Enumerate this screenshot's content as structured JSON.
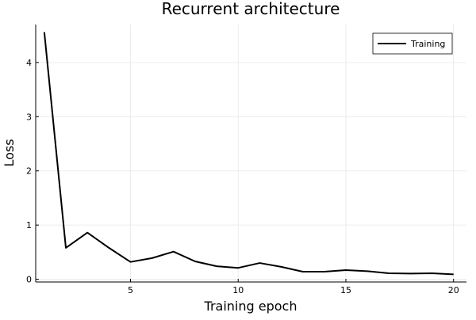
{
  "chart_data": {
    "type": "line",
    "title": "Recurrent architecture",
    "xlabel": "Training epoch",
    "ylabel": "Loss",
    "xlim": [
      0.6,
      20.6
    ],
    "ylim": [
      -0.05,
      4.7
    ],
    "xticks": [
      5,
      10,
      15,
      20
    ],
    "yticks": [
      0,
      1,
      2,
      3,
      4
    ],
    "grid": true,
    "legend_position": "top-right",
    "series": [
      {
        "name": "Training",
        "color": "#000000",
        "x": [
          1,
          2,
          3,
          4,
          5,
          6,
          7,
          8,
          9,
          10,
          11,
          12,
          13,
          14,
          15,
          16,
          17,
          18,
          19,
          20
        ],
        "y": [
          4.56,
          0.58,
          0.86,
          0.58,
          0.32,
          0.39,
          0.51,
          0.33,
          0.24,
          0.21,
          0.3,
          0.23,
          0.14,
          0.14,
          0.17,
          0.15,
          0.11,
          0.105,
          0.11,
          0.09
        ]
      }
    ]
  }
}
